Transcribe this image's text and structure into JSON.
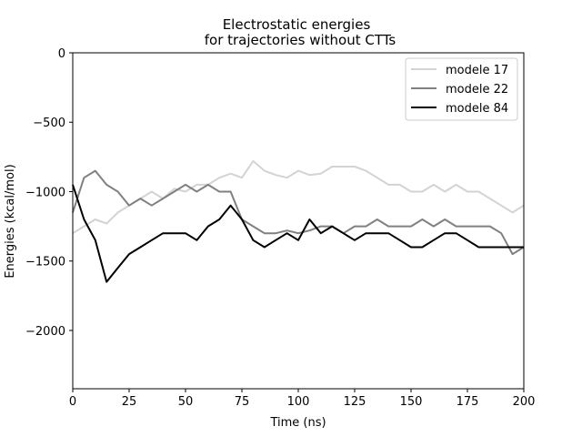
{
  "chart_data": {
    "type": "line",
    "title_line1": "Electrostatic energies",
    "title_line2": "for trajectories without CTTs",
    "xlabel": "Time (ns)",
    "ylabel": "Energies (kcal/mol)",
    "xlim": [
      0,
      200
    ],
    "ylim": [
      -2420,
      0
    ],
    "xticks": [
      0,
      25,
      50,
      75,
      100,
      125,
      150,
      175,
      200
    ],
    "xtick_labels": [
      "0",
      "25",
      "50",
      "75",
      "100",
      "125",
      "150",
      "175",
      "200"
    ],
    "yticks": [
      0,
      -500,
      -1000,
      -1500,
      -2000
    ],
    "ytick_labels": [
      "0",
      "−500",
      "−1000",
      "−1500",
      "−2000"
    ],
    "grid": false,
    "legend_position": "top-right",
    "x": [
      0,
      5,
      10,
      15,
      20,
      25,
      30,
      35,
      40,
      45,
      50,
      55,
      60,
      65,
      70,
      75,
      80,
      85,
      90,
      95,
      100,
      105,
      110,
      115,
      120,
      125,
      130,
      135,
      140,
      145,
      150,
      155,
      160,
      165,
      170,
      175,
      180,
      185,
      190,
      195,
      200
    ],
    "series": [
      {
        "name": "modele 17",
        "color": "#d3d3d3",
        "values": [
          -1300,
          -1250,
          -1200,
          -1230,
          -1150,
          -1100,
          -1050,
          -1000,
          -1050,
          -980,
          -1000,
          -950,
          -950,
          -900,
          -870,
          -900,
          -780,
          -850,
          -880,
          -900,
          -850,
          -880,
          -870,
          -820,
          -820,
          -820,
          -850,
          -900,
          -950,
          -950,
          -1000,
          -1000,
          -950,
          -1000,
          -950,
          -1000,
          -1000,
          -1050,
          -1100,
          -1150,
          -1100
        ]
      },
      {
        "name": "modele 22",
        "color": "#808080",
        "values": [
          -1150,
          -900,
          -850,
          -950,
          -1000,
          -1100,
          -1050,
          -1100,
          -1050,
          -1000,
          -950,
          -1000,
          -950,
          -1000,
          -1000,
          -1200,
          -1250,
          -1300,
          -1300,
          -1280,
          -1300,
          -1280,
          -1250,
          -1250,
          -1300,
          -1250,
          -1250,
          -1200,
          -1250,
          -1250,
          -1250,
          -1200,
          -1250,
          -1200,
          -1250,
          -1250,
          -1250,
          -1250,
          -1300,
          -1450,
          -1400
        ]
      },
      {
        "name": "modele 84",
        "color": "#000000",
        "values": [
          -950,
          -1200,
          -1350,
          -1650,
          -1550,
          -1450,
          -1400,
          -1350,
          -1300,
          -1300,
          -1300,
          -1350,
          -1250,
          -1200,
          -1100,
          -1200,
          -1350,
          -1400,
          -1350,
          -1300,
          -1350,
          -1200,
          -1300,
          -1250,
          -1300,
          -1350,
          -1300,
          -1300,
          -1300,
          -1350,
          -1400,
          -1400,
          -1350,
          -1300,
          -1300,
          -1350,
          -1400,
          -1400,
          -1400,
          -1400,
          -1400
        ]
      }
    ]
  }
}
